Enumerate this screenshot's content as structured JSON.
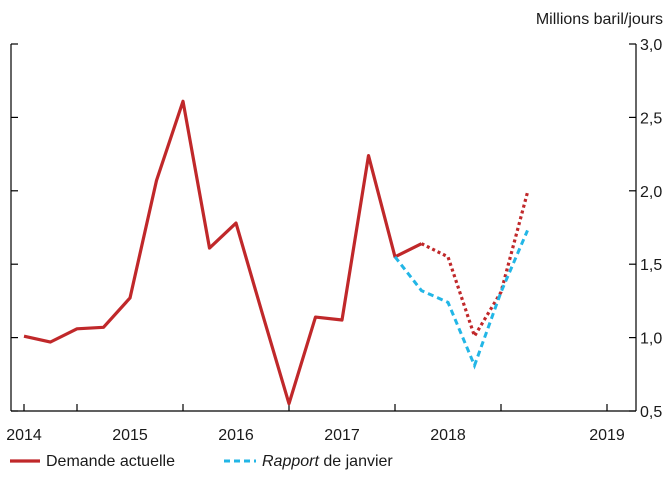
{
  "chart_data": {
    "type": "line",
    "ylabel": "Millions baril/jours",
    "ylim": [
      0.5,
      3.0
    ],
    "y_ticks": [
      "0,5",
      "1,0",
      "1,5",
      "2,0",
      "2,5",
      "3,0"
    ],
    "y_tick_values": [
      0.5,
      1.0,
      1.5,
      2.0,
      2.5,
      3.0
    ],
    "y_axis_position": "right",
    "x_tick_labels": [
      "2014",
      "2015",
      "2016",
      "2017",
      "2018",
      "2019"
    ],
    "x_tick_values": [
      2014,
      2015,
      2016,
      2017,
      2018,
      2019
    ],
    "xlim": [
      2013.5,
      2019.25
    ],
    "grid": false,
    "legend_position": "bottom-left",
    "colors": {
      "demande": "#c0282a",
      "rapport": "#22b6e6",
      "axis": "#000000"
    },
    "legend": {
      "demande_label": "Demande actuelle",
      "rapport_italic": "Rapport",
      "rapport_rest": " de janvier"
    },
    "series": [
      {
        "key": "demande",
        "name": "Demande actuelle",
        "x": [
          2013.5,
          2013.75,
          2014.0,
          2014.25,
          2014.5,
          2014.75,
          2015.0,
          2015.25,
          2015.5,
          2015.75,
          2016.0,
          2016.25,
          2016.5,
          2016.75,
          2017.0,
          2017.25,
          2017.5,
          2017.75,
          2018.0,
          2018.25,
          2018.5
        ],
        "values": [
          1.01,
          0.97,
          1.06,
          1.07,
          1.27,
          2.07,
          2.61,
          1.61,
          1.78,
          1.16,
          0.55,
          1.14,
          1.12,
          2.24,
          1.55,
          1.64,
          1.55,
          1.01,
          1.31,
          1.99,
          null
        ],
        "solid_until_x": 2017.25
      },
      {
        "key": "rapport",
        "name": "Rapport de janvier",
        "x": [
          2017.0,
          2017.25,
          2017.5,
          2017.75,
          2018.0,
          2018.25
        ],
        "values": [
          1.55,
          1.32,
          1.24,
          0.81,
          1.31,
          1.73
        ]
      }
    ]
  }
}
